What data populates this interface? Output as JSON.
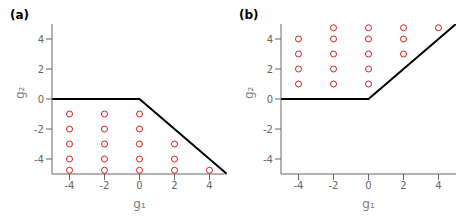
{
  "chart_data": [
    {
      "type": "scatter",
      "title": "(a)",
      "xlabel": "g₁",
      "ylabel": "g₂",
      "xlim": [
        -5,
        5
      ],
      "ylim": [
        -5,
        5
      ],
      "xticks": [
        -4,
        -2,
        0,
        2,
        4
      ],
      "yticks": [
        -4,
        -2,
        0,
        2,
        4
      ],
      "grid": false,
      "series": [
        {
          "type": "line",
          "color": "#000000",
          "line_style": "solid",
          "x": [
            -5,
            0,
            5
          ],
          "values": [
            0,
            0,
            -5
          ]
        },
        {
          "type": "scatter",
          "color": "#cc2222",
          "marker": "circle",
          "x": [
            -4,
            -4,
            -4,
            -4,
            -2,
            -2,
            -2,
            -2,
            0,
            0,
            0,
            0,
            2,
            2,
            -2,
            0,
            2,
            4,
            -4
          ],
          "values": [
            -1,
            -2,
            -3,
            -4,
            -1,
            -2,
            -3,
            -4,
            -1,
            -2,
            -3,
            -4,
            -3,
            -4,
            -4.75,
            -4.75,
            -4.75,
            -4.75,
            -4.75
          ]
        }
      ]
    },
    {
      "type": "scatter",
      "title": "(b)",
      "xlabel": "g₁",
      "ylabel": "g₂",
      "xlim": [
        -5,
        5
      ],
      "ylim": [
        -5,
        5
      ],
      "xticks": [
        -4,
        -2,
        0,
        2,
        4
      ],
      "yticks": [
        -4,
        -2,
        0,
        2,
        4
      ],
      "grid": false,
      "series": [
        {
          "type": "line",
          "color": "#000000",
          "line_style": "solid",
          "x": [
            -5,
            0,
            5
          ],
          "values": [
            0,
            0,
            5
          ]
        },
        {
          "type": "scatter",
          "color": "#cc2222",
          "marker": "circle",
          "x": [
            -4,
            -4,
            -4,
            -4,
            -2,
            -2,
            -2,
            -2,
            0,
            0,
            0,
            0,
            2,
            2,
            -2,
            0,
            2,
            4
          ],
          "values": [
            1,
            2,
            3,
            4,
            1,
            2,
            3,
            4,
            1,
            2,
            3,
            4,
            3,
            4,
            4.75,
            4.75,
            4.75,
            4.75
          ]
        }
      ]
    }
  ]
}
